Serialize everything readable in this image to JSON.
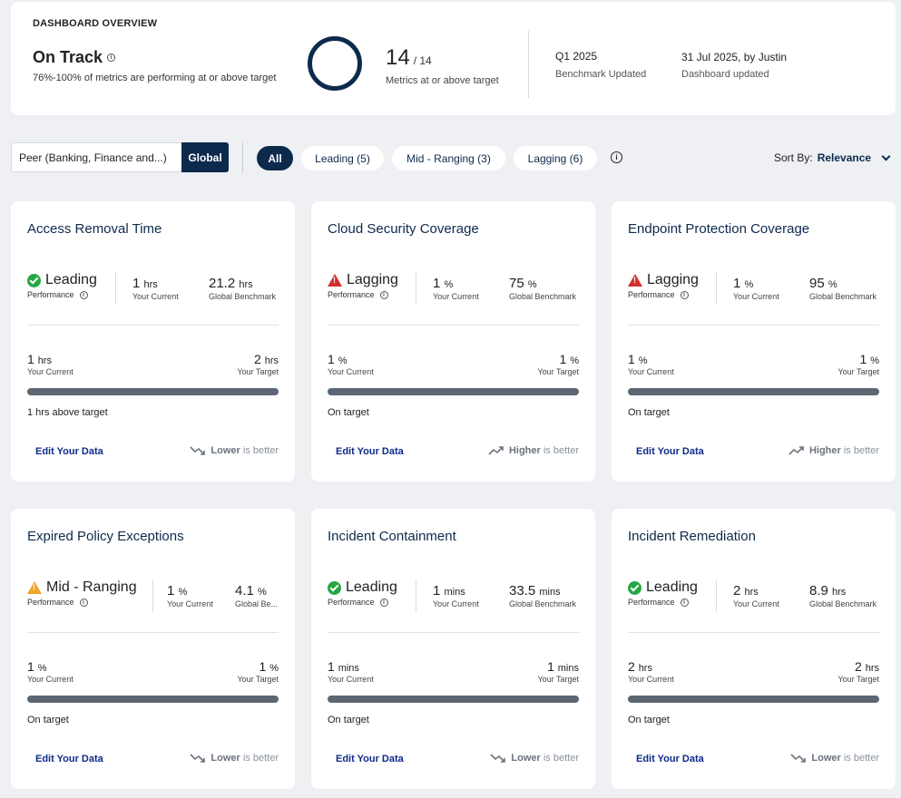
{
  "overview": {
    "caption": "DASHBOARD OVERVIEW",
    "status": "On Track",
    "description": "76%-100% of metrics are performing at or above target",
    "count": "14",
    "total": "/ 14",
    "count_label": "Metrics at or above target",
    "benchmark_period": "Q1 2025",
    "benchmark_label": "Benchmark Updated",
    "dashboard_date": "31 Jul 2025, by Justin",
    "dashboard_label": "Dashboard updated"
  },
  "filters": {
    "peer": "Peer (Banking, Finance and...)",
    "global": "Global",
    "pills": [
      "All",
      "Leading (5)",
      "Mid - Ranging (3)",
      "Lagging (6)"
    ],
    "sort_label": "Sort By:",
    "sort_value": "Relevance"
  },
  "labels": {
    "performance": "Performance",
    "your_current": "Your Current",
    "global_benchmark": "Global Benchmark",
    "your_target": "Your Target",
    "edit": "Edit Your Data",
    "is_better": "is better"
  },
  "cards": [
    {
      "title": "Access Removal Time",
      "status": "Leading",
      "status_icon": "check-circle-icon",
      "current": "1",
      "current_unit": "hrs",
      "benchmark": "21.2",
      "benchmark_unit": "hrs",
      "benchmark_label": "Global Benchmark",
      "your_current": "1",
      "your_current_unit": "hrs",
      "target": "2",
      "target_unit": "hrs",
      "progress": 1.0,
      "note": "1 hrs above target",
      "direction": "Lower",
      "trend": "down"
    },
    {
      "title": "Cloud Security Coverage",
      "status": "Lagging",
      "status_icon": "warning-red-icon",
      "current": "1",
      "current_unit": "%",
      "benchmark": "75",
      "benchmark_unit": "%",
      "benchmark_label": "Global Benchmark",
      "your_current": "1",
      "your_current_unit": "%",
      "target": "1",
      "target_unit": "%",
      "progress": 1.0,
      "note": "On target",
      "direction": "Higher",
      "trend": "up"
    },
    {
      "title": "Endpoint Protection Coverage",
      "status": "Lagging",
      "status_icon": "warning-red-icon",
      "current": "1",
      "current_unit": "%",
      "benchmark": "95",
      "benchmark_unit": "%",
      "benchmark_label": "Global Benchmark",
      "your_current": "1",
      "your_current_unit": "%",
      "target": "1",
      "target_unit": "%",
      "progress": 1.0,
      "note": "On target",
      "direction": "Higher",
      "trend": "up"
    },
    {
      "title": "Expired Policy Exceptions",
      "status": "Mid - Ranging",
      "status_icon": "warning-amber-icon",
      "current": "1",
      "current_unit": "%",
      "benchmark": "4.1",
      "benchmark_unit": "%",
      "benchmark_label": "Global Be...",
      "your_current": "1",
      "your_current_unit": "%",
      "target": "1",
      "target_unit": "%",
      "progress": 1.0,
      "note": "On target",
      "direction": "Lower",
      "trend": "down"
    },
    {
      "title": "Incident Containment",
      "status": "Leading",
      "status_icon": "check-circle-icon",
      "current": "1",
      "current_unit": "mins",
      "benchmark": "33.5",
      "benchmark_unit": "mins",
      "benchmark_label": "Global Benchmark",
      "your_current": "1",
      "your_current_unit": "mins",
      "target": "1",
      "target_unit": "mins",
      "progress": 1.0,
      "note": "On target",
      "direction": "Lower",
      "trend": "down"
    },
    {
      "title": "Incident Remediation",
      "status": "Leading",
      "status_icon": "check-circle-icon",
      "current": "2",
      "current_unit": "hrs",
      "benchmark": "8.9",
      "benchmark_unit": "hrs",
      "benchmark_label": "Global Benchmark",
      "your_current": "2",
      "your_current_unit": "hrs",
      "target": "2",
      "target_unit": "hrs",
      "progress": 1.0,
      "note": "On target",
      "direction": "Lower",
      "trend": "down"
    }
  ],
  "colors": {
    "brand": "#0d2a4c",
    "leading": "#26a745",
    "lagging": "#d32f2f",
    "mid": "#f3a425"
  }
}
